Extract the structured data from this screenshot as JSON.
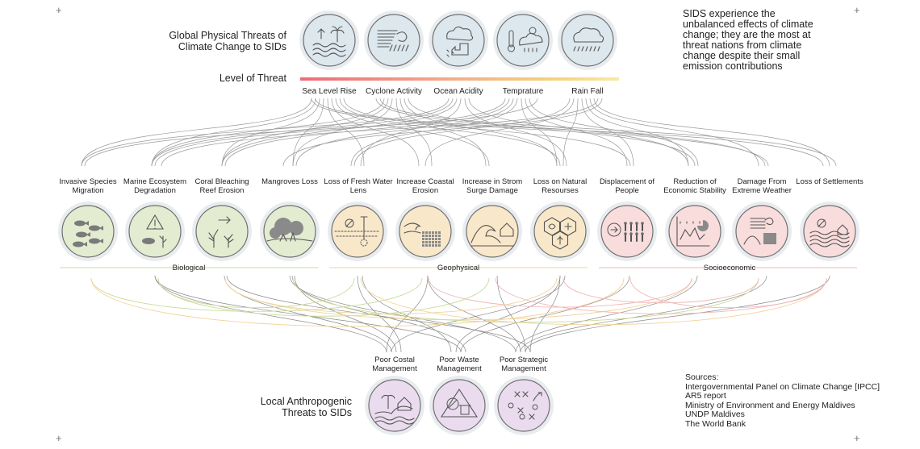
{
  "header": {
    "title": "Global Physical Threats of Climate Change to SIDs",
    "level_label": "Level of Threat",
    "note": "SIDS experience the unbalanced effects of climate change; they are the most at threat nations from climate change despite their small emission contributions"
  },
  "threats": [
    {
      "label": "Sea Level Rise",
      "icon": "sea-level-icon"
    },
    {
      "label": "Cyclone Activity",
      "icon": "cyclone-icon"
    },
    {
      "label": "Ocean Acidity",
      "icon": "ocean-acidity-icon"
    },
    {
      "label": "Temprature",
      "icon": "temperature-icon"
    },
    {
      "label": "Rain Fall",
      "icon": "rain-icon"
    }
  ],
  "impacts": [
    {
      "label": "Invasive Species Migration",
      "icon": "fish-icon"
    },
    {
      "label": "Marine Ecosystem Degradation",
      "icon": "warning-icon"
    },
    {
      "label": "Coral Bleaching Reef Erosion",
      "icon": "coral-icon"
    },
    {
      "label": "Mangroves Loss",
      "icon": "mangrove-icon"
    },
    {
      "label": "Loss of Fresh Water Lens",
      "icon": "water-lens-icon"
    },
    {
      "label": "Increase Coastal Erosion",
      "icon": "erosion-icon"
    },
    {
      "label": "Increase in Strom Surge Damage",
      "icon": "surge-icon"
    },
    {
      "label": "Loss on Natural Resourses",
      "icon": "resources-icon"
    },
    {
      "label": "Displacement of People",
      "icon": "displacement-icon"
    },
    {
      "label": "Reduction of Economic Stability",
      "icon": "economy-icon"
    },
    {
      "label": "Damage From Extreme Weather",
      "icon": "storm-damage-icon"
    },
    {
      "label": "Loss of Settlements",
      "icon": "settlement-icon"
    }
  ],
  "categories": [
    "Biological",
    "Geophysical",
    "Socioeconomic"
  ],
  "local": {
    "title": "Local Anthropogenic Threats to SIDs",
    "items": [
      {
        "label": "Poor Costal Management",
        "icon": "coast-icon"
      },
      {
        "label": "Poor Waste Management",
        "icon": "waste-icon"
      },
      {
        "label": "Poor Strategic Management",
        "icon": "strategy-icon"
      }
    ]
  },
  "sources": {
    "heading": "Sources:",
    "lines": [
      "Intergovernmental Panel on Climate Change [IPCC]",
      "AR5 report",
      "Ministry of Environment and Energy Maldives",
      "UNDP Maldives",
      "The World Bank"
    ]
  },
  "colors": {
    "threat_fill": "#dce7ee",
    "bio_fill": "#e3ecd0",
    "geo_fill": "#f8e8c9",
    "socio_fill": "#f9dcdc",
    "local_fill": "#eadcee",
    "bio_line": "#c9dc9a",
    "geo_line": "#f2d49a",
    "socio_line": "#f1b7b7"
  }
}
